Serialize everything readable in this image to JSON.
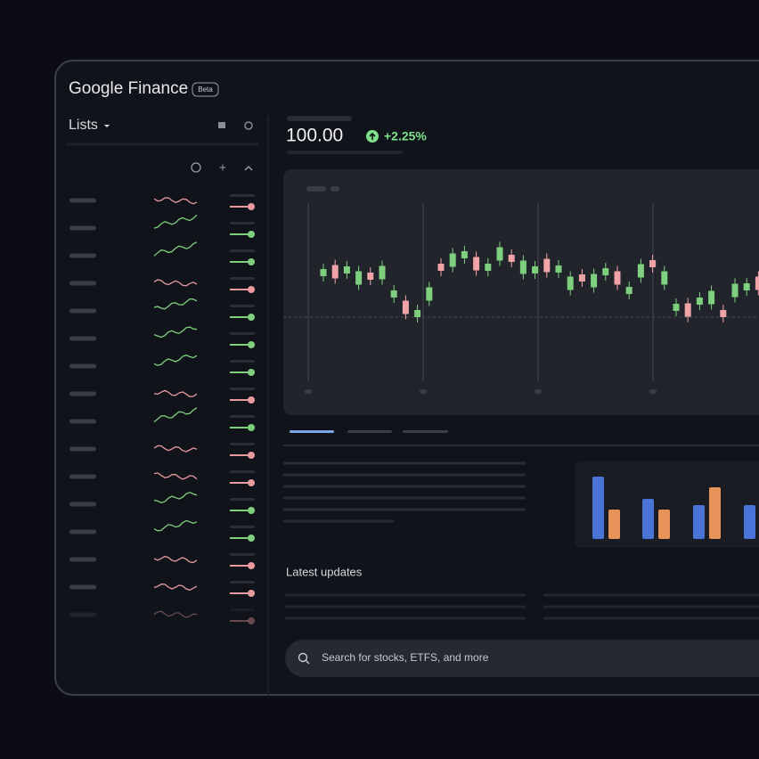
{
  "header": {
    "brand": "Google Finance",
    "badge": "Beta"
  },
  "sidebar": {
    "title": "Lists"
  },
  "quote": {
    "price": "100.00",
    "change": "+2.25%"
  },
  "updates": {
    "title": "Latest updates"
  },
  "search": {
    "placeholder": "Search for stocks, ETFS, and more"
  }
}
